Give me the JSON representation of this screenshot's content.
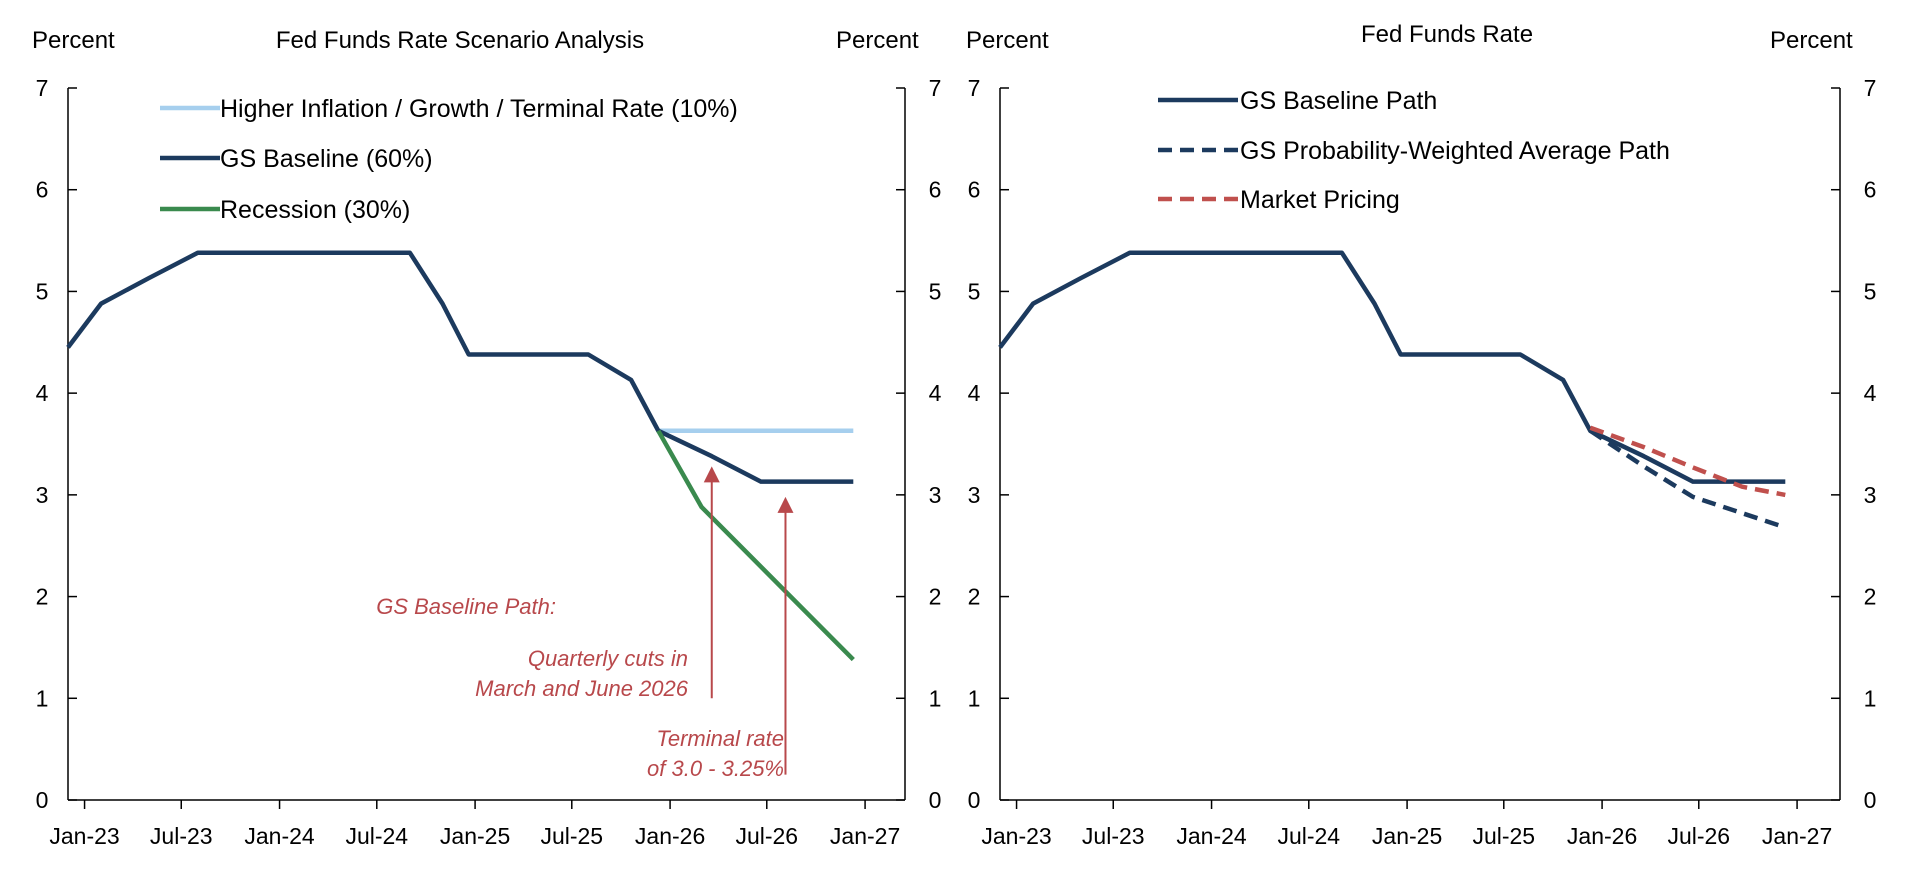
{
  "chart_data": [
    {
      "type": "line",
      "title": "Fed Funds Rate Scenario Analysis",
      "ylabel_left": "Percent",
      "ylabel_right": "Percent",
      "ylim": [
        0,
        7
      ],
      "yticks": [
        "0",
        "1",
        "2",
        "3",
        "4",
        "5",
        "6",
        "7"
      ],
      "xlim": [
        "2022-12-01",
        "2026-12-15"
      ],
      "xticks": [
        {
          "label": "Jan-23",
          "date": "2023-01-01"
        },
        {
          "label": "Jul-23",
          "date": "2023-07-01"
        },
        {
          "label": "Jan-24",
          "date": "2024-01-01"
        },
        {
          "label": "Jul-24",
          "date": "2024-07-01"
        },
        {
          "label": "Jan-25",
          "date": "2025-01-01"
        },
        {
          "label": "Jul-25",
          "date": "2025-07-01"
        },
        {
          "label": "Jan-26",
          "date": "2026-01-01"
        },
        {
          "label": "Jul-26",
          "date": "2026-07-01"
        },
        {
          "label": "Jan-27",
          "date": "2027-01-01"
        }
      ],
      "legend_placement": "top-left",
      "series": [
        {
          "name": "Higher Inflation / Growth / Terminal Rate (10%)",
          "color": "#a6cfee",
          "dash": "solid",
          "points": [
            [
              "2025-12-10",
              3.63
            ],
            [
              "2026-12-10",
              3.63
            ]
          ]
        },
        {
          "name": "GS Baseline (60%)",
          "color": "#1c3a5e",
          "dash": "solid",
          "points": [
            [
              "2022-12-01",
              4.45
            ],
            [
              "2023-02-01",
              4.88
            ],
            [
              "2023-05-01",
              5.13
            ],
            [
              "2023-08-01",
              5.38
            ],
            [
              "2024-09-01",
              5.38
            ],
            [
              "2024-11-01",
              4.88
            ],
            [
              "2024-12-20",
              4.38
            ],
            [
              "2025-08-01",
              4.38
            ],
            [
              "2025-10-20",
              4.13
            ],
            [
              "2025-12-10",
              3.63
            ],
            [
              "2026-03-20",
              3.38
            ],
            [
              "2026-06-20",
              3.13
            ],
            [
              "2026-12-10",
              3.13
            ]
          ]
        },
        {
          "name": "Recession (30%)",
          "color": "#3a8a4e",
          "dash": "solid",
          "points": [
            [
              "2025-12-10",
              3.63
            ],
            [
              "2026-03-01",
              2.88
            ],
            [
              "2026-12-10",
              1.38
            ]
          ]
        }
      ],
      "annotations": [
        {
          "lines": [
            "GS Baseline Path:",
            "",
            "Quarterly cuts in",
            "March and June 2026"
          ],
          "arrow_date": "2026-03-20",
          "arrow_from": 1.0,
          "arrow_to": 3.28
        },
        {
          "lines": [
            "Terminal rate",
            "of 3.0 - 3.25%"
          ],
          "arrow_date": "2026-08-05",
          "arrow_from": 0.25,
          "arrow_to": 2.98
        }
      ]
    },
    {
      "type": "line",
      "title": "Fed Funds Rate",
      "ylabel_left": "Percent",
      "ylabel_right": "Percent",
      "ylim": [
        0,
        7
      ],
      "yticks": [
        "0",
        "1",
        "2",
        "3",
        "4",
        "5",
        "6",
        "7"
      ],
      "xlim": [
        "2022-12-01",
        "2026-12-15"
      ],
      "xticks": [
        {
          "label": "Jan-23",
          "date": "2023-01-01"
        },
        {
          "label": "Jul-23",
          "date": "2023-07-01"
        },
        {
          "label": "Jan-24",
          "date": "2024-01-01"
        },
        {
          "label": "Jul-24",
          "date": "2024-07-01"
        },
        {
          "label": "Jan-25",
          "date": "2025-01-01"
        },
        {
          "label": "Jul-25",
          "date": "2025-07-01"
        },
        {
          "label": "Jan-26",
          "date": "2026-01-01"
        },
        {
          "label": "Jul-26",
          "date": "2026-07-01"
        },
        {
          "label": "Jan-27",
          "date": "2027-01-01"
        }
      ],
      "legend_placement": "top-left",
      "series": [
        {
          "name": "GS Baseline Path",
          "color": "#1c3a5e",
          "dash": "solid",
          "points": [
            [
              "2022-12-01",
              4.45
            ],
            [
              "2023-02-01",
              4.88
            ],
            [
              "2023-05-01",
              5.13
            ],
            [
              "2023-08-01",
              5.38
            ],
            [
              "2024-09-01",
              5.38
            ],
            [
              "2024-11-01",
              4.88
            ],
            [
              "2024-12-20",
              4.38
            ],
            [
              "2025-08-01",
              4.38
            ],
            [
              "2025-10-20",
              4.13
            ],
            [
              "2025-12-10",
              3.63
            ],
            [
              "2026-03-20",
              3.38
            ],
            [
              "2026-06-20",
              3.13
            ],
            [
              "2026-12-10",
              3.13
            ]
          ]
        },
        {
          "name": "GS Probability-Weighted Average Path",
          "color": "#1c3a5e",
          "dash": "dashed",
          "points": [
            [
              "2025-12-10",
              3.63
            ],
            [
              "2026-03-20",
              3.28
            ],
            [
              "2026-06-20",
              2.98
            ],
            [
              "2026-12-10",
              2.68
            ]
          ]
        },
        {
          "name": "Market Pricing",
          "color": "#c0504d",
          "dash": "dashed",
          "points": [
            [
              "2025-12-10",
              3.66
            ],
            [
              "2026-03-20",
              3.47
            ],
            [
              "2026-06-20",
              3.27
            ],
            [
              "2026-09-20",
              3.08
            ],
            [
              "2026-12-10",
              3.0
            ]
          ]
        }
      ]
    }
  ]
}
